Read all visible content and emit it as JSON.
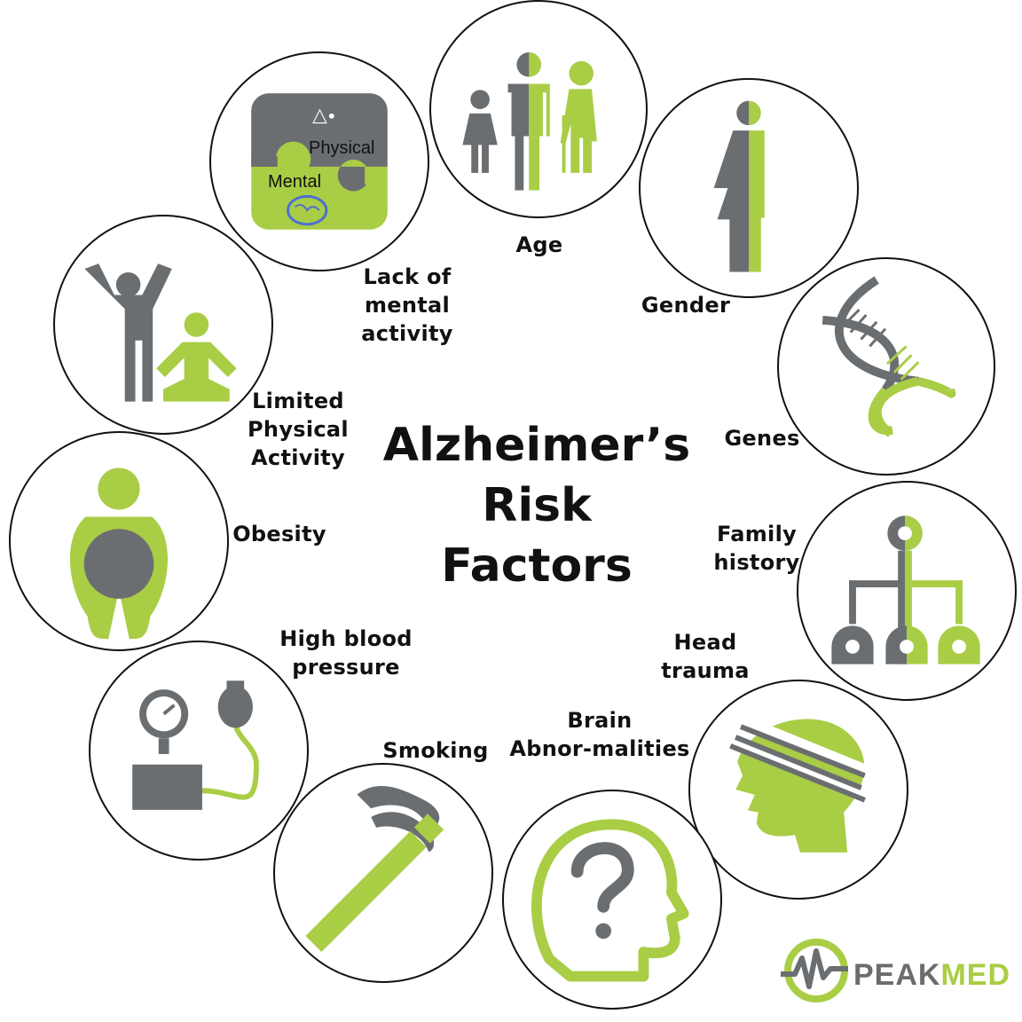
{
  "title": "Alzheimer’s\nRisk\nFactors",
  "colors": {
    "gray": "#6b6e71",
    "green": "#a9cd45",
    "outline": "#111111"
  },
  "factors": [
    {
      "id": "age",
      "label": "Age",
      "icon": "age-group-icon"
    },
    {
      "id": "gender",
      "label": "Gender",
      "icon": "gender-split-icon"
    },
    {
      "id": "genes",
      "label": "Genes",
      "icon": "dna-icon"
    },
    {
      "id": "family",
      "label": "Family\nhistory",
      "icon": "family-tree-icon"
    },
    {
      "id": "head",
      "label": "Head\ntrauma",
      "icon": "bandaged-head-icon"
    },
    {
      "id": "brain",
      "label": "Brain\nAbnor-malities",
      "icon": "head-question-icon"
    },
    {
      "id": "smoking",
      "label": "Smoking",
      "icon": "cigarette-icon"
    },
    {
      "id": "bp",
      "label": "High blood\npressure",
      "icon": "blood-pressure-gauge-icon"
    },
    {
      "id": "obesity",
      "label": "Obesity",
      "icon": "obese-person-icon"
    },
    {
      "id": "physical",
      "label": "Limited\nPhysical\nActivity",
      "icon": "exercise-people-icon"
    },
    {
      "id": "mental",
      "label": "Lack of\nmental\nactivity",
      "icon": "puzzle-icon"
    }
  ],
  "puzzle": {
    "top_text": "Physical",
    "bottom_text": "Mental"
  },
  "logo": {
    "part1": "PEAK",
    "part2": "MED"
  }
}
